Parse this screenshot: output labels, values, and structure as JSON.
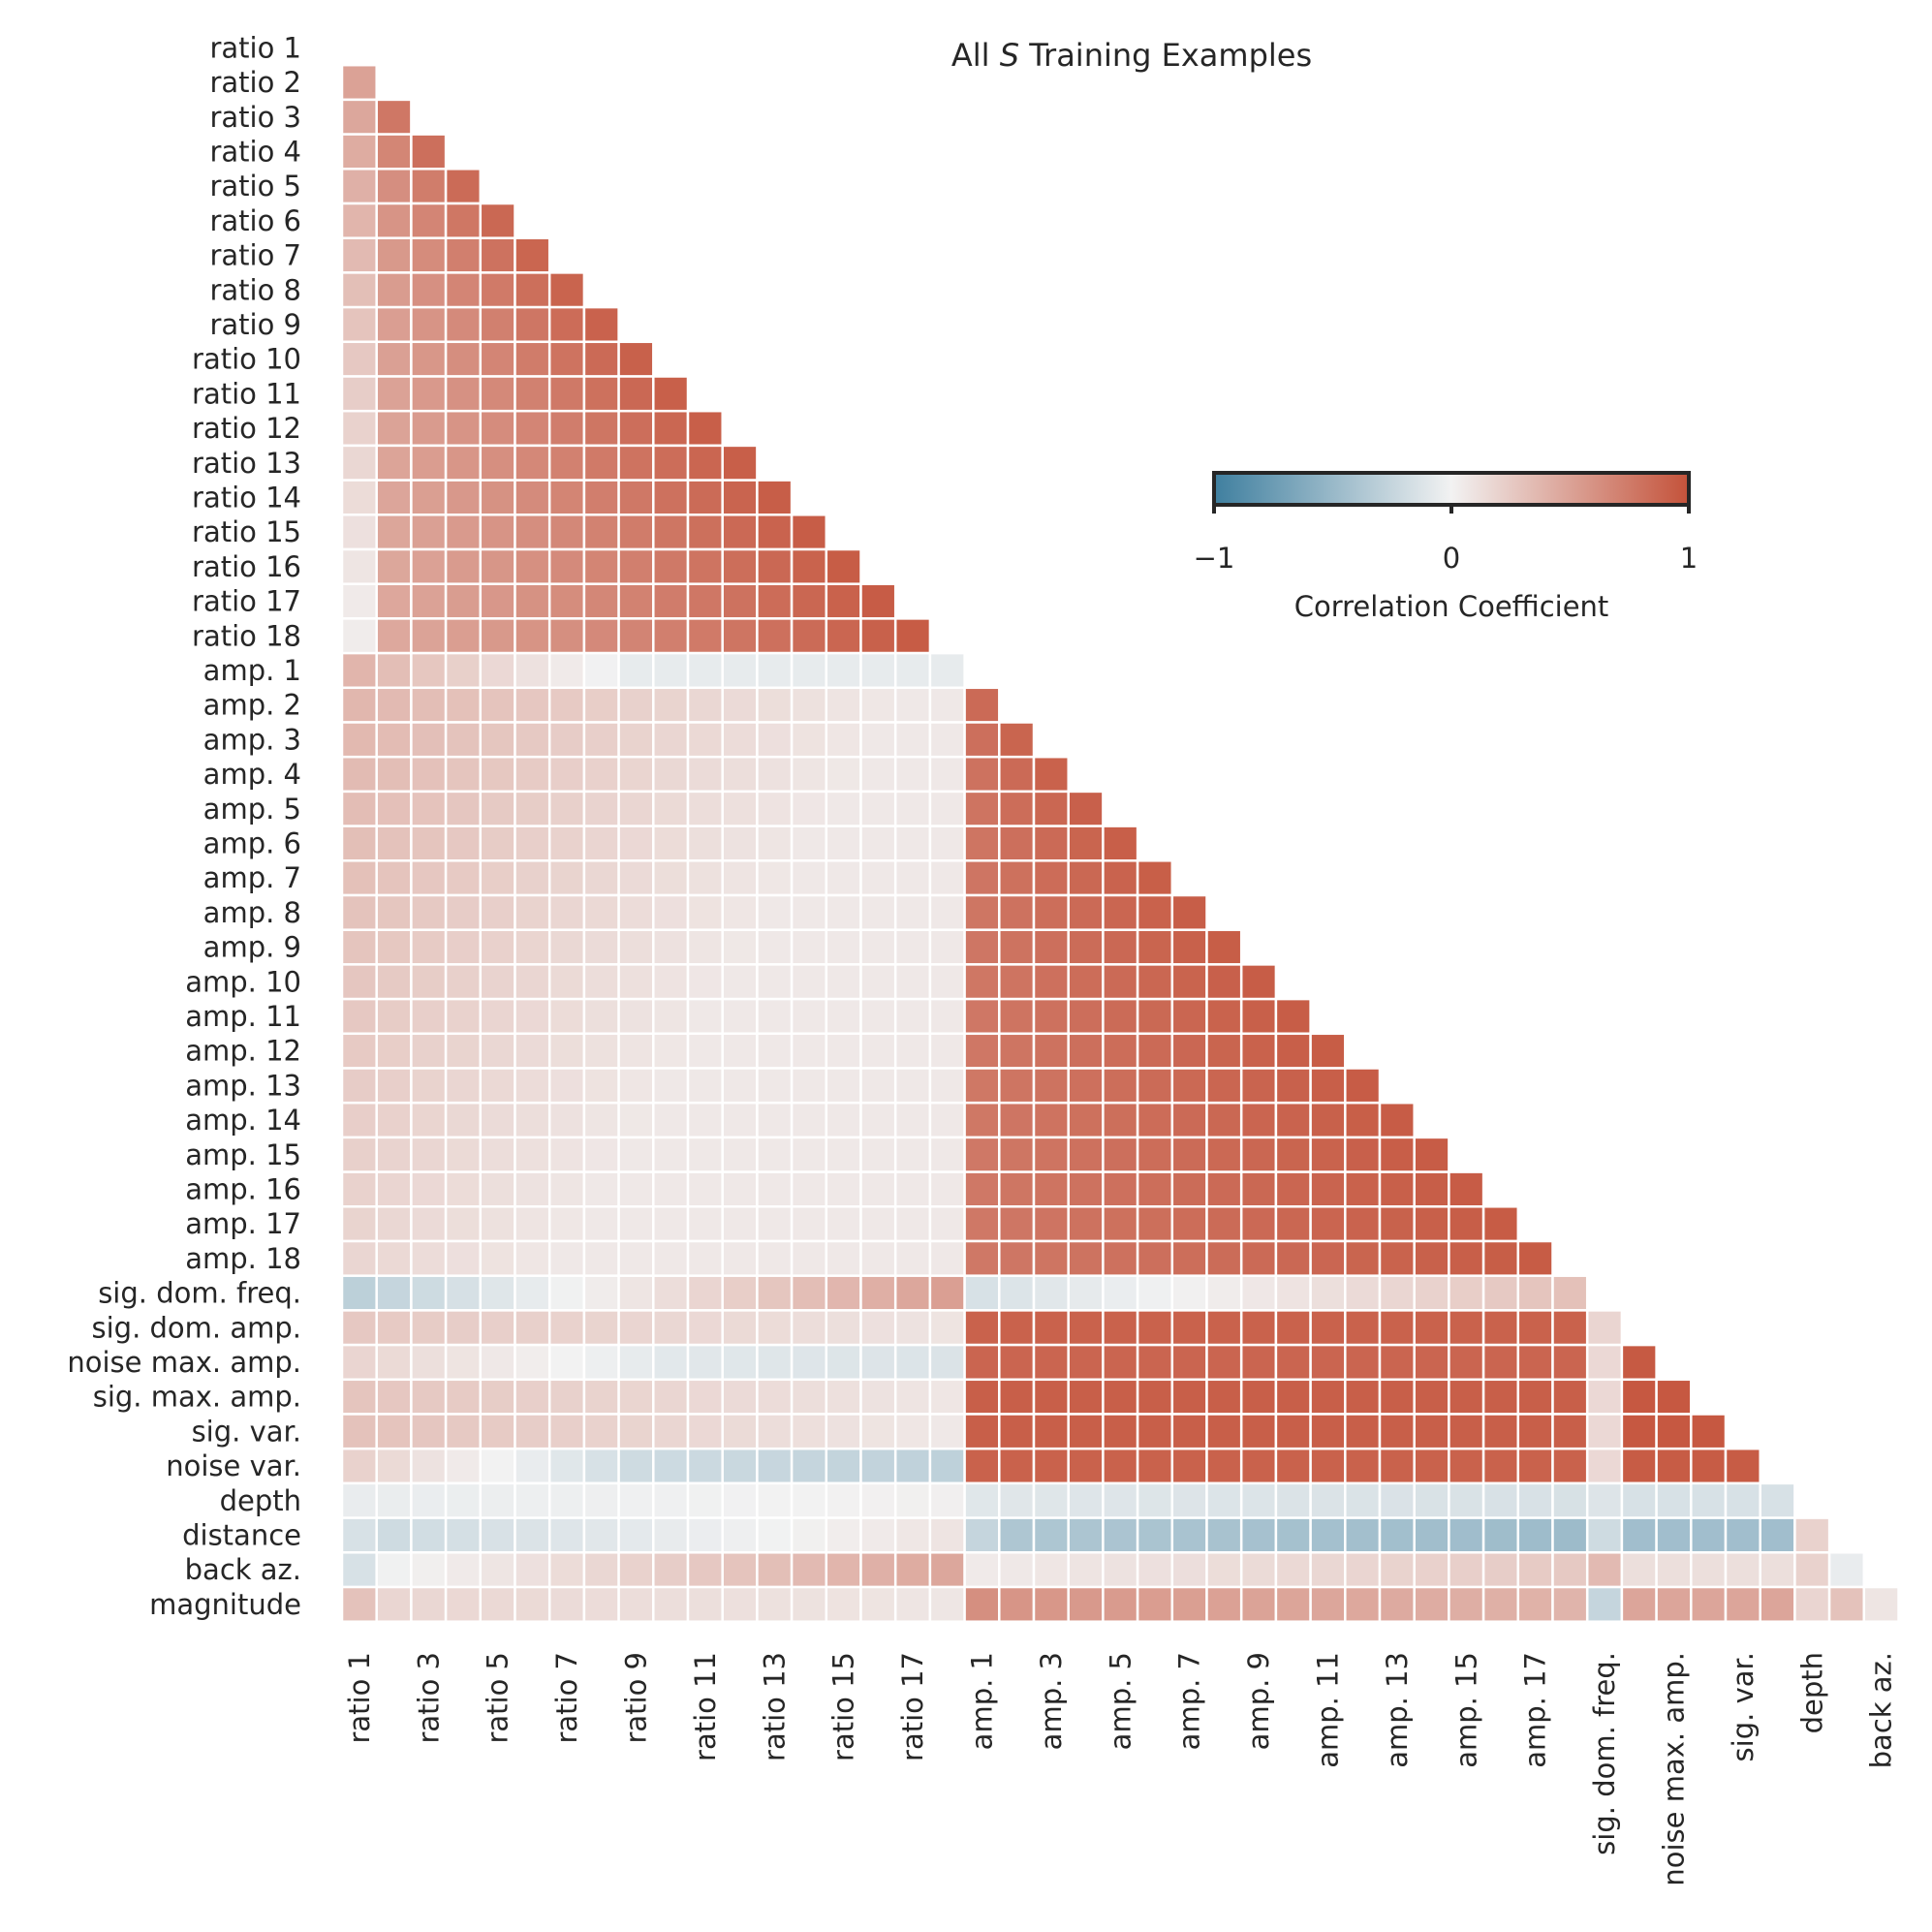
{
  "chart_data": {
    "type": "heatmap",
    "title_prefix": "All ",
    "title_italic": "S",
    "title_suffix": " Training Examples",
    "variables": [
      "ratio 1",
      "ratio 2",
      "ratio 3",
      "ratio 4",
      "ratio 5",
      "ratio 6",
      "ratio 7",
      "ratio 8",
      "ratio 9",
      "ratio 10",
      "ratio 11",
      "ratio 12",
      "ratio 13",
      "ratio 14",
      "ratio 15",
      "ratio 16",
      "ratio 17",
      "ratio 18",
      "amp. 1",
      "amp. 2",
      "amp. 3",
      "amp. 4",
      "amp. 5",
      "amp. 6",
      "amp. 7",
      "amp. 8",
      "amp. 9",
      "amp. 10",
      "amp. 11",
      "amp. 12",
      "amp. 13",
      "amp. 14",
      "amp. 15",
      "amp. 16",
      "amp. 17",
      "amp. 18",
      "sig. dom. freq.",
      "sig. dom. amp.",
      "noise max. amp.",
      "sig. max. amp.",
      "sig. var.",
      "noise var.",
      "depth",
      "distance",
      "back az.",
      "magnitude"
    ],
    "x_tick_labels": [
      "ratio 1",
      "ratio 3",
      "ratio 5",
      "ratio 7",
      "ratio 9",
      "ratio 11",
      "ratio 13",
      "ratio 15",
      "ratio 17",
      "amp. 1",
      "amp. 3",
      "amp. 5",
      "amp. 7",
      "amp. 9",
      "amp. 11",
      "amp. 13",
      "amp. 15",
      "amp. 17",
      "sig. dom. freq.",
      "noise max. amp.",
      "sig. var.",
      "depth",
      "back az."
    ],
    "mask": "upper triangle including diagonal",
    "colorbar": {
      "label": "Correlation Coefficient",
      "ticks": [
        "−1",
        "0",
        "1"
      ],
      "range": [
        -1,
        1
      ],
      "colors": {
        "low": "#3f7f9f",
        "mid": "#f2f2f2",
        "high": "#c4523a"
      }
    },
    "grid_color": "#ffffff"
  }
}
